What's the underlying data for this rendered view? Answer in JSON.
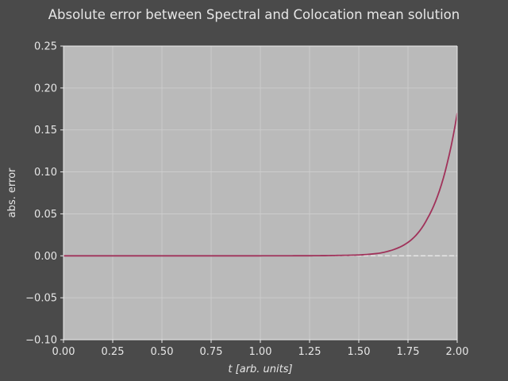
{
  "chart_data": {
    "type": "line",
    "title": "Absolute error between Spectral and Colocation mean solution",
    "xlabel_prefix": "t",
    "xlabel_units": "[arb. units]",
    "ylabel": "abs. error",
    "xlim": [
      0.0,
      2.0
    ],
    "ylim": [
      -0.1,
      0.25
    ],
    "x_ticks": [
      "0.00",
      "0.25",
      "0.50",
      "0.75",
      "1.00",
      "1.25",
      "1.50",
      "1.75",
      "2.00"
    ],
    "y_ticks": [
      "−0.10",
      "−0.05",
      "0.00",
      "0.05",
      "0.10",
      "0.15",
      "0.20",
      "0.25"
    ],
    "x_tick_values": [
      0.0,
      0.25,
      0.5,
      0.75,
      1.0,
      1.25,
      1.5,
      1.75,
      2.0
    ],
    "y_tick_values": [
      -0.1,
      -0.05,
      0.0,
      0.05,
      0.1,
      0.15,
      0.2,
      0.25
    ],
    "grid": true,
    "reference_line": {
      "y": 0.0,
      "style": "dashed",
      "color": "#e6e6e6"
    },
    "series": [
      {
        "color": "#a0325a",
        "x": [
          0.0,
          0.25,
          0.5,
          0.75,
          1.0,
          1.25,
          1.4,
          1.5,
          1.55,
          1.6,
          1.65,
          1.7,
          1.75,
          1.8,
          1.85,
          1.9,
          1.95,
          2.0
        ],
        "values": [
          0.0,
          0.0,
          0.0,
          0.0,
          0.0,
          0.0001,
          0.0005,
          0.001,
          0.0018,
          0.003,
          0.0055,
          0.0095,
          0.016,
          0.027,
          0.045,
          0.071,
          0.111,
          0.17
        ]
      }
    ],
    "colors": {
      "background": "#4a4a4a",
      "plot_area": "#bababa",
      "grid": "#cfcfcf",
      "text": "#e6e6e6"
    }
  }
}
